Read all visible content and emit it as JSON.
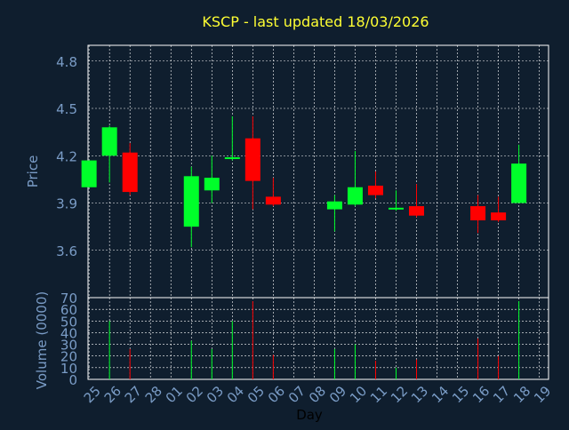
{
  "colors": {
    "background": "#0f1e2e",
    "title": "#ffff33",
    "axis_text": "#7a9cc6",
    "frame": "#ffffff",
    "grid": "#ffffff",
    "up": "#00ff2a",
    "down": "#ff0000",
    "day_label": "#000000"
  },
  "chart_data": [
    {
      "type": "candlestick",
      "title": "KSCP - last updated 18/03/2026",
      "ylabel": "Price",
      "yticks": [
        "4.8",
        "4.5",
        "4.2",
        "3.9",
        "3.6"
      ],
      "ylim": [
        3.3,
        4.9
      ],
      "grid": true,
      "candles": [
        {
          "x": 0,
          "open": 4.0,
          "high": 4.17,
          "low": 4.0,
          "close": 4.17
        },
        {
          "x": 1,
          "open": 4.2,
          "high": 4.39,
          "low": 4.03,
          "close": 4.38
        },
        {
          "x": 2,
          "open": 4.22,
          "high": 4.28,
          "low": 3.95,
          "close": 3.97
        },
        {
          "x": 5,
          "open": 3.75,
          "high": 4.13,
          "low": 3.62,
          "close": 4.07
        },
        {
          "x": 6,
          "open": 3.98,
          "high": 4.2,
          "low": 3.9,
          "close": 4.06
        },
        {
          "x": 7,
          "open": 4.18,
          "high": 4.45,
          "low": 4.17,
          "close": 4.19
        },
        {
          "x": 8,
          "open": 4.31,
          "high": 4.45,
          "low": 3.86,
          "close": 4.04
        },
        {
          "x": 9,
          "open": 3.94,
          "high": 4.06,
          "low": 3.88,
          "close": 3.89
        },
        {
          "x": 12,
          "open": 3.86,
          "high": 3.95,
          "low": 3.72,
          "close": 3.91
        },
        {
          "x": 13,
          "open": 3.89,
          "high": 4.23,
          "low": 3.88,
          "close": 4.0
        },
        {
          "x": 14,
          "open": 4.01,
          "high": 4.1,
          "low": 3.93,
          "close": 3.95
        },
        {
          "x": 15,
          "open": 3.87,
          "high": 3.98,
          "low": 3.85,
          "close": 3.87
        },
        {
          "x": 16,
          "open": 3.88,
          "high": 4.02,
          "low": 3.81,
          "close": 3.82
        },
        {
          "x": 19,
          "open": 3.88,
          "high": 3.95,
          "low": 3.71,
          "close": 3.79
        },
        {
          "x": 20,
          "open": 3.84,
          "high": 3.94,
          "low": 3.78,
          "close": 3.79
        },
        {
          "x": 21,
          "open": 3.9,
          "high": 4.27,
          "low": 3.9,
          "close": 4.15
        }
      ]
    },
    {
      "type": "bar",
      "ylabel": "Volume (0000)",
      "xlabel": "Day",
      "yticks": [
        "70",
        "60",
        "50",
        "40",
        "30",
        "20",
        "10",
        "0"
      ],
      "ylim": [
        0,
        70
      ],
      "categories": [
        "25",
        "26",
        "27",
        "28",
        "01",
        "02",
        "03",
        "04",
        "05",
        "06",
        "07",
        "08",
        "09",
        "10",
        "11",
        "12",
        "13",
        "14",
        "15",
        "16",
        "17",
        "18",
        "19"
      ],
      "volumes": [
        {
          "x": 1,
          "value": 50,
          "dir": "up"
        },
        {
          "x": 2,
          "value": 26,
          "dir": "down"
        },
        {
          "x": 5,
          "value": 33,
          "dir": "up"
        },
        {
          "x": 6,
          "value": 26,
          "dir": "up"
        },
        {
          "x": 7,
          "value": 50,
          "dir": "up"
        },
        {
          "x": 8,
          "value": 67,
          "dir": "down"
        },
        {
          "x": 9,
          "value": 21,
          "dir": "down"
        },
        {
          "x": 12,
          "value": 26,
          "dir": "up"
        },
        {
          "x": 13,
          "value": 30,
          "dir": "up"
        },
        {
          "x": 14,
          "value": 16,
          "dir": "down"
        },
        {
          "x": 15,
          "value": 10,
          "dir": "up"
        },
        {
          "x": 16,
          "value": 17,
          "dir": "down"
        },
        {
          "x": 19,
          "value": 35,
          "dir": "down"
        },
        {
          "x": 20,
          "value": 20,
          "dir": "down"
        },
        {
          "x": 21,
          "value": 67,
          "dir": "up"
        }
      ]
    }
  ]
}
